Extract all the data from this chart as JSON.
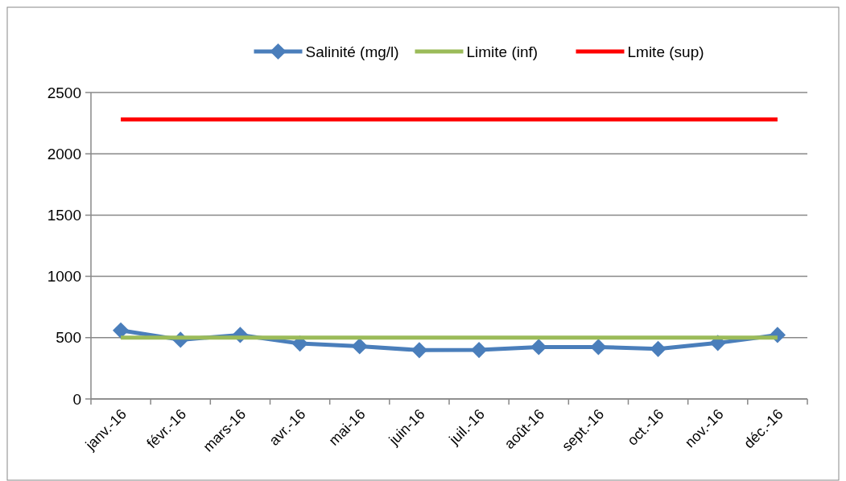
{
  "chart_data": {
    "type": "line",
    "categories": [
      "janv.-16",
      "févr.-16",
      "mars-16",
      "avr.-16",
      "mai-16",
      "juin-16",
      "juil.-16",
      "août-16",
      "sept.-16",
      "oct.-16",
      "nov.-16",
      "déc.-16"
    ],
    "series": [
      {
        "name": "Salinité (mg/l)",
        "color": "#4a7ebb",
        "marker": "diamond",
        "values": [
          559,
          483,
          522,
          452,
          430,
          398,
          400,
          424,
          424,
          408,
          457,
          522
        ]
      },
      {
        "name": "Limite (inf)",
        "color": "#9bbb59",
        "marker": "none",
        "values": [
          500,
          500,
          500,
          500,
          500,
          500,
          500,
          500,
          500,
          500,
          500,
          500
        ]
      },
      {
        "name": "Lmite (sup)",
        "color": "#ff0000",
        "marker": "none",
        "values": [
          2280,
          2280,
          2280,
          2280,
          2280,
          2280,
          2280,
          2280,
          2280,
          2280,
          2280,
          2280
        ]
      }
    ],
    "ylim": [
      0,
      2500
    ],
    "yticks": [
      0,
      500,
      1000,
      1500,
      2000,
      2500
    ],
    "grid": "y",
    "legend": "top"
  }
}
